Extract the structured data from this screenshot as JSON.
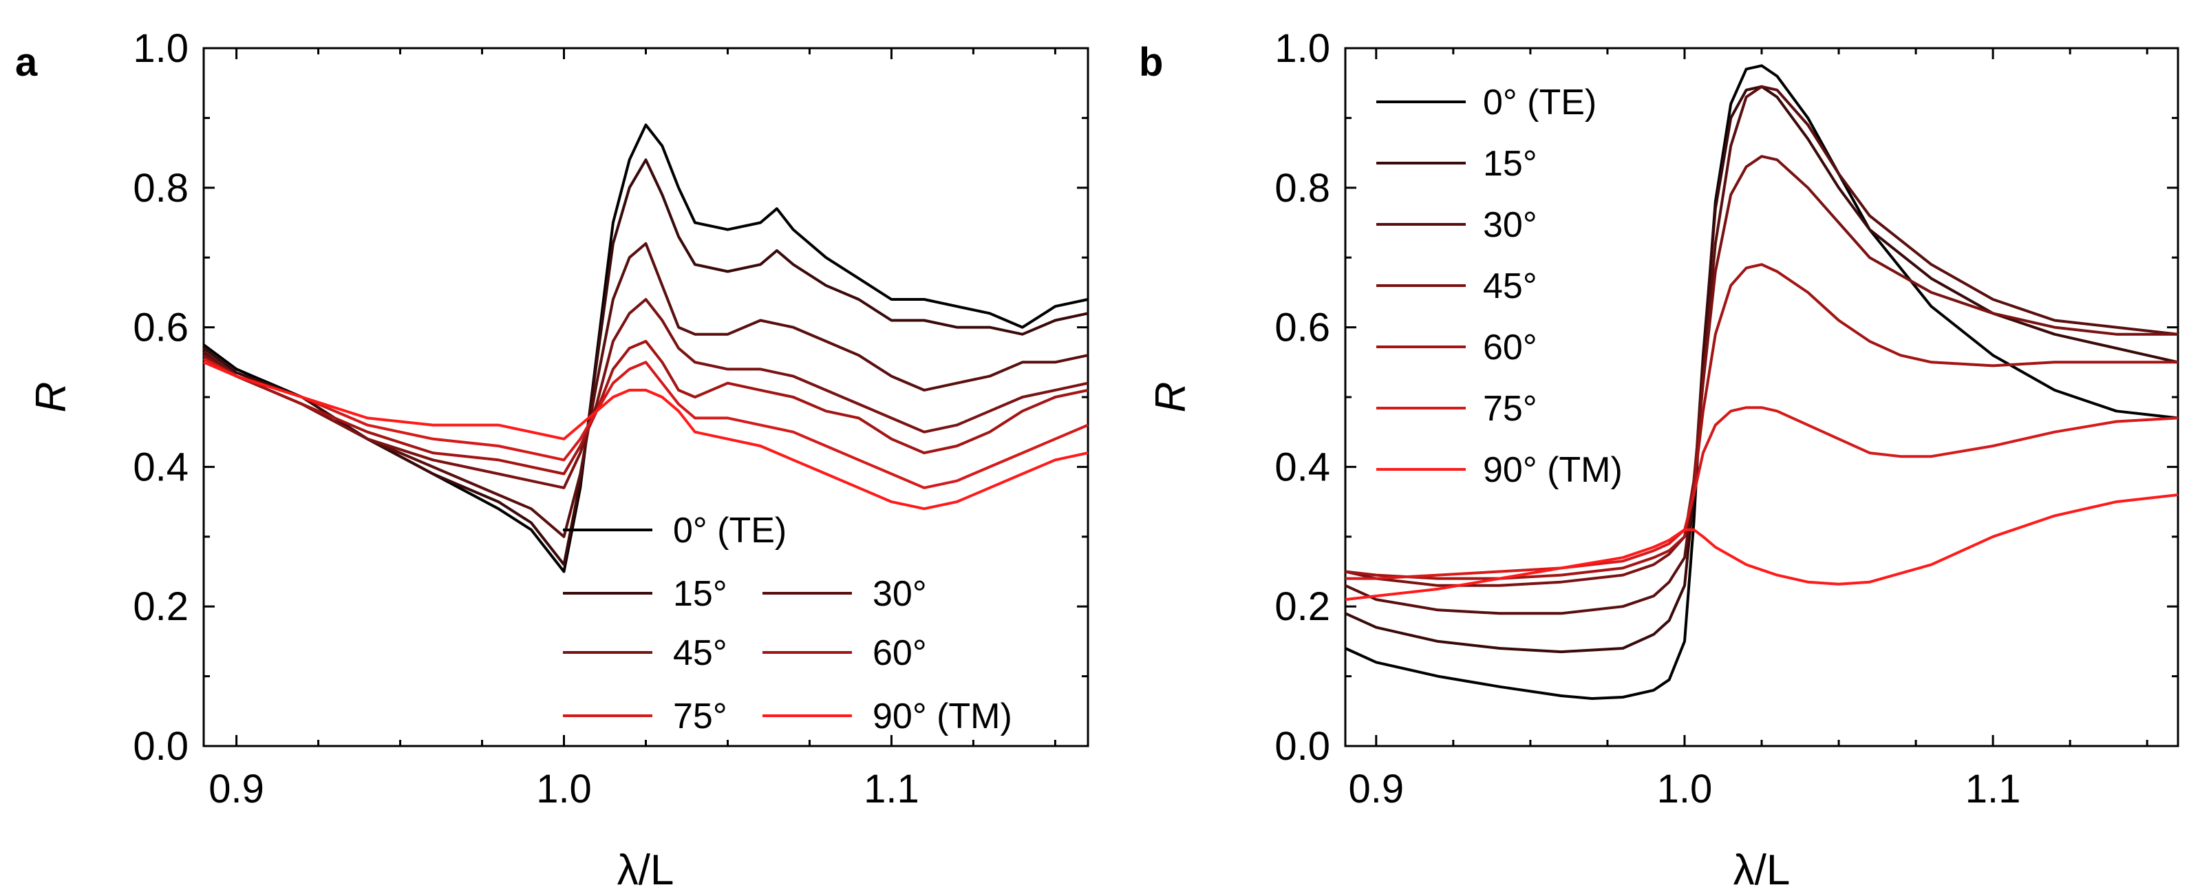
{
  "colors": {
    "deg0": "#000000",
    "deg15": "#3a0a0a",
    "deg30": "#5a0f0f",
    "deg45": "#7a1212",
    "deg60": "#a31414",
    "deg75": "#d41a1a",
    "deg90": "#ff1a1a"
  },
  "chart_data": [
    {
      "panel_label": "a",
      "type": "line",
      "title": "",
      "xlabel": "λ/L",
      "ylabel": "R",
      "xlim": [
        0.89,
        1.16
      ],
      "ylim": [
        0.0,
        1.0
      ],
      "xticks": [
        "0.9",
        "1.0",
        "1.1"
      ],
      "yticks": [
        "0.0",
        "0.2",
        "0.4",
        "0.6",
        "0.8",
        "1.0"
      ],
      "legend": [
        "0° (TE)",
        "15°",
        "30°",
        "45°",
        "60°",
        "75°",
        "90° (TM)"
      ],
      "series": [
        {
          "name": "0° (TE)",
          "color_key": "deg0",
          "x": [
            0.89,
            0.9,
            0.92,
            0.94,
            0.96,
            0.98,
            0.99,
            1.0,
            1.005,
            1.01,
            1.015,
            1.02,
            1.025,
            1.03,
            1.035,
            1.04,
            1.05,
            1.06,
            1.065,
            1.07,
            1.08,
            1.09,
            1.1,
            1.11,
            1.12,
            1.13,
            1.14,
            1.15,
            1.16
          ],
          "y": [
            0.575,
            0.54,
            0.5,
            0.44,
            0.39,
            0.34,
            0.31,
            0.25,
            0.37,
            0.56,
            0.75,
            0.84,
            0.89,
            0.86,
            0.8,
            0.75,
            0.74,
            0.75,
            0.77,
            0.74,
            0.7,
            0.67,
            0.64,
            0.64,
            0.63,
            0.62,
            0.6,
            0.63,
            0.64
          ]
        },
        {
          "name": "15°",
          "color_key": "deg15",
          "x": [
            0.89,
            0.9,
            0.92,
            0.94,
            0.96,
            0.98,
            0.99,
            1.0,
            1.005,
            1.01,
            1.015,
            1.02,
            1.025,
            1.03,
            1.035,
            1.04,
            1.05,
            1.06,
            1.065,
            1.07,
            1.08,
            1.09,
            1.1,
            1.11,
            1.12,
            1.13,
            1.14,
            1.15,
            1.16
          ],
          "y": [
            0.57,
            0.535,
            0.5,
            0.44,
            0.39,
            0.35,
            0.32,
            0.26,
            0.38,
            0.55,
            0.72,
            0.8,
            0.84,
            0.79,
            0.73,
            0.69,
            0.68,
            0.69,
            0.71,
            0.69,
            0.66,
            0.64,
            0.61,
            0.61,
            0.6,
            0.6,
            0.59,
            0.61,
            0.62
          ]
        },
        {
          "name": "30°",
          "color_key": "deg30",
          "x": [
            0.89,
            0.9,
            0.92,
            0.94,
            0.96,
            0.98,
            0.99,
            1.0,
            1.005,
            1.01,
            1.015,
            1.02,
            1.025,
            1.03,
            1.035,
            1.04,
            1.05,
            1.06,
            1.07,
            1.08,
            1.09,
            1.1,
            1.11,
            1.12,
            1.13,
            1.14,
            1.15,
            1.16
          ],
          "y": [
            0.565,
            0.53,
            0.49,
            0.44,
            0.4,
            0.36,
            0.34,
            0.3,
            0.39,
            0.52,
            0.64,
            0.7,
            0.72,
            0.66,
            0.6,
            0.59,
            0.59,
            0.61,
            0.6,
            0.58,
            0.56,
            0.53,
            0.51,
            0.52,
            0.53,
            0.55,
            0.55,
            0.56
          ]
        },
        {
          "name": "45°",
          "color_key": "deg45",
          "x": [
            0.89,
            0.9,
            0.92,
            0.94,
            0.96,
            0.98,
            0.99,
            1.0,
            1.005,
            1.01,
            1.015,
            1.02,
            1.025,
            1.03,
            1.035,
            1.04,
            1.05,
            1.06,
            1.07,
            1.08,
            1.09,
            1.1,
            1.11,
            1.12,
            1.13,
            1.14,
            1.15,
            1.16
          ],
          "y": [
            0.56,
            0.53,
            0.49,
            0.44,
            0.41,
            0.39,
            0.38,
            0.37,
            0.42,
            0.49,
            0.58,
            0.62,
            0.64,
            0.61,
            0.57,
            0.55,
            0.54,
            0.54,
            0.53,
            0.51,
            0.49,
            0.47,
            0.45,
            0.46,
            0.48,
            0.5,
            0.51,
            0.52
          ]
        },
        {
          "name": "60°",
          "color_key": "deg60",
          "x": [
            0.89,
            0.9,
            0.92,
            0.94,
            0.96,
            0.98,
            0.99,
            1.0,
            1.005,
            1.01,
            1.015,
            1.02,
            1.025,
            1.03,
            1.035,
            1.04,
            1.05,
            1.06,
            1.07,
            1.08,
            1.09,
            1.1,
            1.11,
            1.12,
            1.13,
            1.14,
            1.15,
            1.16
          ],
          "y": [
            0.555,
            0.53,
            0.49,
            0.45,
            0.42,
            0.41,
            0.4,
            0.39,
            0.43,
            0.48,
            0.54,
            0.57,
            0.58,
            0.55,
            0.51,
            0.5,
            0.52,
            0.51,
            0.5,
            0.48,
            0.47,
            0.44,
            0.42,
            0.43,
            0.45,
            0.48,
            0.5,
            0.51
          ]
        },
        {
          "name": "75°",
          "color_key": "deg75",
          "x": [
            0.89,
            0.9,
            0.92,
            0.94,
            0.96,
            0.98,
            0.99,
            1.0,
            1.005,
            1.01,
            1.015,
            1.02,
            1.025,
            1.03,
            1.035,
            1.04,
            1.05,
            1.06,
            1.07,
            1.08,
            1.09,
            1.1,
            1.11,
            1.12,
            1.13,
            1.14,
            1.15,
            1.16
          ],
          "y": [
            0.555,
            0.53,
            0.5,
            0.46,
            0.44,
            0.43,
            0.42,
            0.41,
            0.44,
            0.48,
            0.52,
            0.54,
            0.55,
            0.52,
            0.49,
            0.47,
            0.47,
            0.46,
            0.45,
            0.43,
            0.41,
            0.39,
            0.37,
            0.38,
            0.4,
            0.42,
            0.44,
            0.46
          ]
        },
        {
          "name": "90° (TM)",
          "color_key": "deg90",
          "x": [
            0.89,
            0.9,
            0.92,
            0.94,
            0.96,
            0.98,
            0.99,
            1.0,
            1.005,
            1.01,
            1.015,
            1.02,
            1.025,
            1.03,
            1.035,
            1.04,
            1.05,
            1.06,
            1.07,
            1.08,
            1.09,
            1.1,
            1.11,
            1.12,
            1.13,
            1.14,
            1.15,
            1.16
          ],
          "y": [
            0.55,
            0.53,
            0.5,
            0.47,
            0.46,
            0.46,
            0.45,
            0.44,
            0.46,
            0.48,
            0.5,
            0.51,
            0.51,
            0.5,
            0.48,
            0.45,
            0.44,
            0.43,
            0.41,
            0.39,
            0.37,
            0.35,
            0.34,
            0.35,
            0.37,
            0.39,
            0.41,
            0.42
          ]
        }
      ]
    },
    {
      "panel_label": "b",
      "type": "line",
      "title": "",
      "xlabel": "λ/L",
      "ylabel": "R",
      "xlim": [
        0.89,
        1.16
      ],
      "ylim": [
        0.0,
        1.0
      ],
      "xticks": [
        "0.9",
        "1.0",
        "1.1"
      ],
      "yticks": [
        "0.0",
        "0.2",
        "0.4",
        "0.6",
        "0.8",
        "1.0"
      ],
      "legend": [
        "0° (TE)",
        "15°",
        "30°",
        "45°",
        "60°",
        "75°",
        "90° (TM)"
      ],
      "series": [
        {
          "name": "0° (TE)",
          "color_key": "deg0",
          "x": [
            0.89,
            0.9,
            0.92,
            0.94,
            0.96,
            0.97,
            0.98,
            0.99,
            0.995,
            1.0,
            1.003,
            1.006,
            1.01,
            1.015,
            1.02,
            1.025,
            1.03,
            1.04,
            1.05,
            1.06,
            1.08,
            1.1,
            1.12,
            1.14,
            1.16
          ],
          "y": [
            0.14,
            0.12,
            0.1,
            0.085,
            0.072,
            0.068,
            0.07,
            0.08,
            0.095,
            0.15,
            0.32,
            0.55,
            0.78,
            0.92,
            0.97,
            0.975,
            0.96,
            0.9,
            0.82,
            0.74,
            0.63,
            0.56,
            0.51,
            0.48,
            0.47
          ]
        },
        {
          "name": "15°",
          "color_key": "deg15",
          "x": [
            0.89,
            0.9,
            0.92,
            0.94,
            0.96,
            0.98,
            0.99,
            0.995,
            1.0,
            1.003,
            1.006,
            1.01,
            1.015,
            1.02,
            1.025,
            1.03,
            1.04,
            1.05,
            1.06,
            1.08,
            1.1,
            1.12,
            1.14,
            1.16
          ],
          "y": [
            0.19,
            0.17,
            0.15,
            0.14,
            0.135,
            0.14,
            0.16,
            0.18,
            0.23,
            0.36,
            0.56,
            0.77,
            0.9,
            0.94,
            0.945,
            0.93,
            0.87,
            0.8,
            0.74,
            0.67,
            0.62,
            0.59,
            0.57,
            0.55
          ]
        },
        {
          "name": "30°",
          "color_key": "deg30",
          "x": [
            0.89,
            0.9,
            0.92,
            0.94,
            0.96,
            0.98,
            0.99,
            0.995,
            1.0,
            1.003,
            1.006,
            1.01,
            1.015,
            1.02,
            1.025,
            1.03,
            1.04,
            1.05,
            1.06,
            1.08,
            1.1,
            1.12,
            1.14,
            1.16
          ],
          "y": [
            0.23,
            0.21,
            0.195,
            0.19,
            0.19,
            0.2,
            0.215,
            0.235,
            0.27,
            0.37,
            0.53,
            0.72,
            0.86,
            0.93,
            0.945,
            0.94,
            0.89,
            0.82,
            0.76,
            0.69,
            0.64,
            0.61,
            0.6,
            0.59
          ]
        },
        {
          "name": "45°",
          "color_key": "deg45",
          "x": [
            0.89,
            0.9,
            0.92,
            0.94,
            0.96,
            0.98,
            0.99,
            0.995,
            1.0,
            1.003,
            1.006,
            1.01,
            1.015,
            1.02,
            1.025,
            1.03,
            1.04,
            1.05,
            1.06,
            1.08,
            1.1,
            1.12,
            1.14,
            1.16
          ],
          "y": [
            0.25,
            0.24,
            0.23,
            0.23,
            0.235,
            0.245,
            0.26,
            0.275,
            0.3,
            0.38,
            0.52,
            0.68,
            0.79,
            0.83,
            0.845,
            0.84,
            0.8,
            0.75,
            0.7,
            0.65,
            0.62,
            0.6,
            0.59,
            0.59
          ]
        },
        {
          "name": "60°",
          "color_key": "deg60",
          "x": [
            0.89,
            0.9,
            0.92,
            0.94,
            0.96,
            0.98,
            0.99,
            0.995,
            1.0,
            1.003,
            1.006,
            1.01,
            1.015,
            1.02,
            1.025,
            1.03,
            1.04,
            1.05,
            1.06,
            1.07,
            1.08,
            1.1,
            1.12,
            1.14,
            1.16
          ],
          "y": [
            0.25,
            0.245,
            0.24,
            0.24,
            0.245,
            0.255,
            0.27,
            0.28,
            0.3,
            0.37,
            0.48,
            0.59,
            0.66,
            0.685,
            0.69,
            0.68,
            0.65,
            0.61,
            0.58,
            0.56,
            0.55,
            0.545,
            0.55,
            0.55,
            0.55
          ]
        },
        {
          "name": "75°",
          "color_key": "deg75",
          "x": [
            0.89,
            0.9,
            0.92,
            0.94,
            0.96,
            0.98,
            0.99,
            0.995,
            1.0,
            1.003,
            1.006,
            1.01,
            1.015,
            1.02,
            1.025,
            1.03,
            1.04,
            1.05,
            1.06,
            1.07,
            1.08,
            1.1,
            1.12,
            1.14,
            1.16
          ],
          "y": [
            0.24,
            0.24,
            0.245,
            0.25,
            0.255,
            0.265,
            0.28,
            0.29,
            0.31,
            0.36,
            0.42,
            0.46,
            0.48,
            0.485,
            0.485,
            0.48,
            0.46,
            0.44,
            0.42,
            0.415,
            0.415,
            0.43,
            0.45,
            0.465,
            0.47
          ]
        },
        {
          "name": "90° (TM)",
          "color_key": "deg90",
          "x": [
            0.89,
            0.9,
            0.92,
            0.94,
            0.96,
            0.98,
            0.99,
            0.995,
            1.0,
            1.003,
            1.006,
            1.01,
            1.02,
            1.03,
            1.04,
            1.05,
            1.06,
            1.08,
            1.1,
            1.12,
            1.14,
            1.16
          ],
          "y": [
            0.21,
            0.215,
            0.225,
            0.24,
            0.255,
            0.27,
            0.285,
            0.295,
            0.31,
            0.31,
            0.3,
            0.285,
            0.26,
            0.245,
            0.235,
            0.232,
            0.235,
            0.26,
            0.3,
            0.33,
            0.35,
            0.36
          ]
        }
      ]
    }
  ]
}
